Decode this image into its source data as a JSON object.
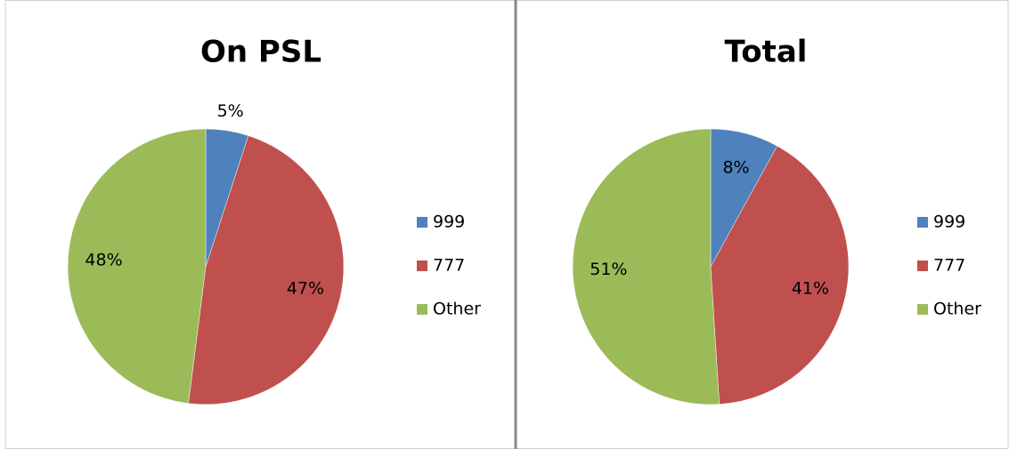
{
  "chart_data": [
    {
      "type": "pie",
      "title": "On PSL",
      "categories": [
        "999",
        "777",
        "Other"
      ],
      "values": [
        5,
        47,
        48
      ],
      "value_labels": [
        "5%",
        "47%",
        "48%"
      ],
      "colors": [
        "#4f81bd",
        "#c0504d",
        "#9bbb59"
      ]
    },
    {
      "type": "pie",
      "title": "Total",
      "categories": [
        "999",
        "777",
        "Other"
      ],
      "values": [
        8,
        41,
        51
      ],
      "value_labels": [
        "8%",
        "41%",
        "51%"
      ],
      "colors": [
        "#4f81bd",
        "#c0504d",
        "#9bbb59"
      ]
    }
  ]
}
